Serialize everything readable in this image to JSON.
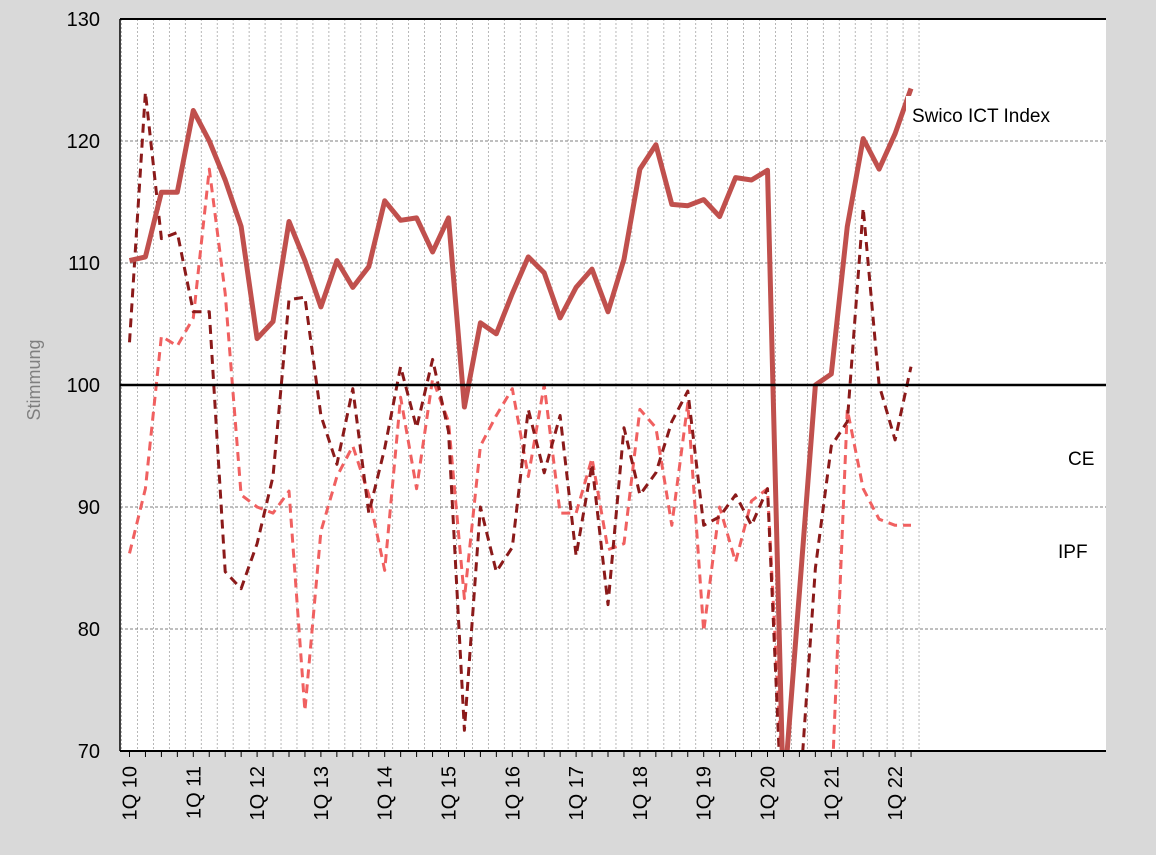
{
  "chart_data": {
    "type": "line",
    "ylabel": "Stimmung",
    "xlabel": "",
    "ylim": [
      70,
      130
    ],
    "yticks": [
      70,
      80,
      90,
      100,
      110,
      120,
      130
    ],
    "reference_line": 100,
    "grid": true,
    "x_tick_labels": [
      {
        "index": 0,
        "label": "1Q 10"
      },
      {
        "index": 4,
        "label": "1Q 11"
      },
      {
        "index": 8,
        "label": "1Q 12"
      },
      {
        "index": 12,
        "label": "1Q 13"
      },
      {
        "index": 16,
        "label": "1Q 14"
      },
      {
        "index": 20,
        "label": "1Q 15"
      },
      {
        "index": 24,
        "label": "1Q 16"
      },
      {
        "index": 28,
        "label": "1Q 17"
      },
      {
        "index": 32,
        "label": "1Q 18"
      },
      {
        "index": 36,
        "label": "1Q 19"
      },
      {
        "index": 40,
        "label": "1Q 20"
      },
      {
        "index": 44,
        "label": "1Q 21"
      },
      {
        "index": 48,
        "label": "1Q 22"
      }
    ],
    "n_periods": 50,
    "series": [
      {
        "name": "Swico ICT Index",
        "color": "#c0504d",
        "style": "solid",
        "values": [
          110.2,
          110.5,
          115.8,
          115.8,
          122.5,
          120.0,
          116.8,
          113.0,
          103.8,
          105.2,
          113.4,
          110.2,
          106.4,
          110.2,
          108.0,
          109.7,
          115.1,
          113.5,
          113.7,
          110.9,
          113.7,
          98.2,
          105.1,
          104.2,
          107.5,
          110.5,
          109.2,
          105.5,
          108.0,
          109.5,
          106.0,
          110.3,
          117.7,
          119.7,
          114.8,
          114.7,
          115.2,
          113.8,
          117.0,
          116.8,
          117.6,
          66.0,
          83.0,
          100.0,
          100.9,
          113.0,
          120.2,
          117.7,
          120.6,
          124.3
        ]
      },
      {
        "name": "CE",
        "color": "#8b1a1a",
        "style": "dashed",
        "values": [
          103.5,
          124.0,
          112.0,
          112.5,
          106.0,
          106.0,
          84.7,
          83.3,
          87.0,
          92.5,
          107.0,
          107.2,
          97.5,
          93.5,
          99.7,
          89.5,
          94.8,
          101.5,
          96.5,
          102.1,
          96.2,
          71.7,
          90.0,
          84.7,
          86.7,
          98.0,
          92.8,
          97.5,
          86.0,
          93.5,
          82.0,
          96.5,
          91.0,
          92.8,
          97.0,
          99.5,
          88.5,
          89.2,
          91.0,
          88.5,
          91.5,
          62.0,
          66.0,
          85.0,
          95.0,
          97.0,
          114.5,
          100.0,
          95.5,
          101.5
        ]
      },
      {
        "name": "IPF",
        "color": "#f06060",
        "style": "dashed",
        "values": [
          86.2,
          91.5,
          104.0,
          103.2,
          105.5,
          117.7,
          107.5,
          91.0,
          90.0,
          89.5,
          91.3,
          73.3,
          88.0,
          92.5,
          95.0,
          91.0,
          84.8,
          99.0,
          91.5,
          100.5,
          97.0,
          82.5,
          95.0,
          97.5,
          99.7,
          92.5,
          100.0,
          89.5,
          89.5,
          94.0,
          86.5,
          87.0,
          98.0,
          96.5,
          88.5,
          98.5,
          79.8,
          90.0,
          85.5,
          90.5,
          91.5,
          66.0,
          62.0,
          64.0,
          66.0,
          98.0,
          91.5,
          89.0,
          88.5,
          88.5
        ]
      }
    ],
    "annotations": [
      {
        "text": "Swico ICT Index",
        "series": "Swico ICT Index"
      },
      {
        "text": "CE",
        "series": "CE"
      },
      {
        "text": "IPF",
        "series": "IPF"
      }
    ]
  }
}
